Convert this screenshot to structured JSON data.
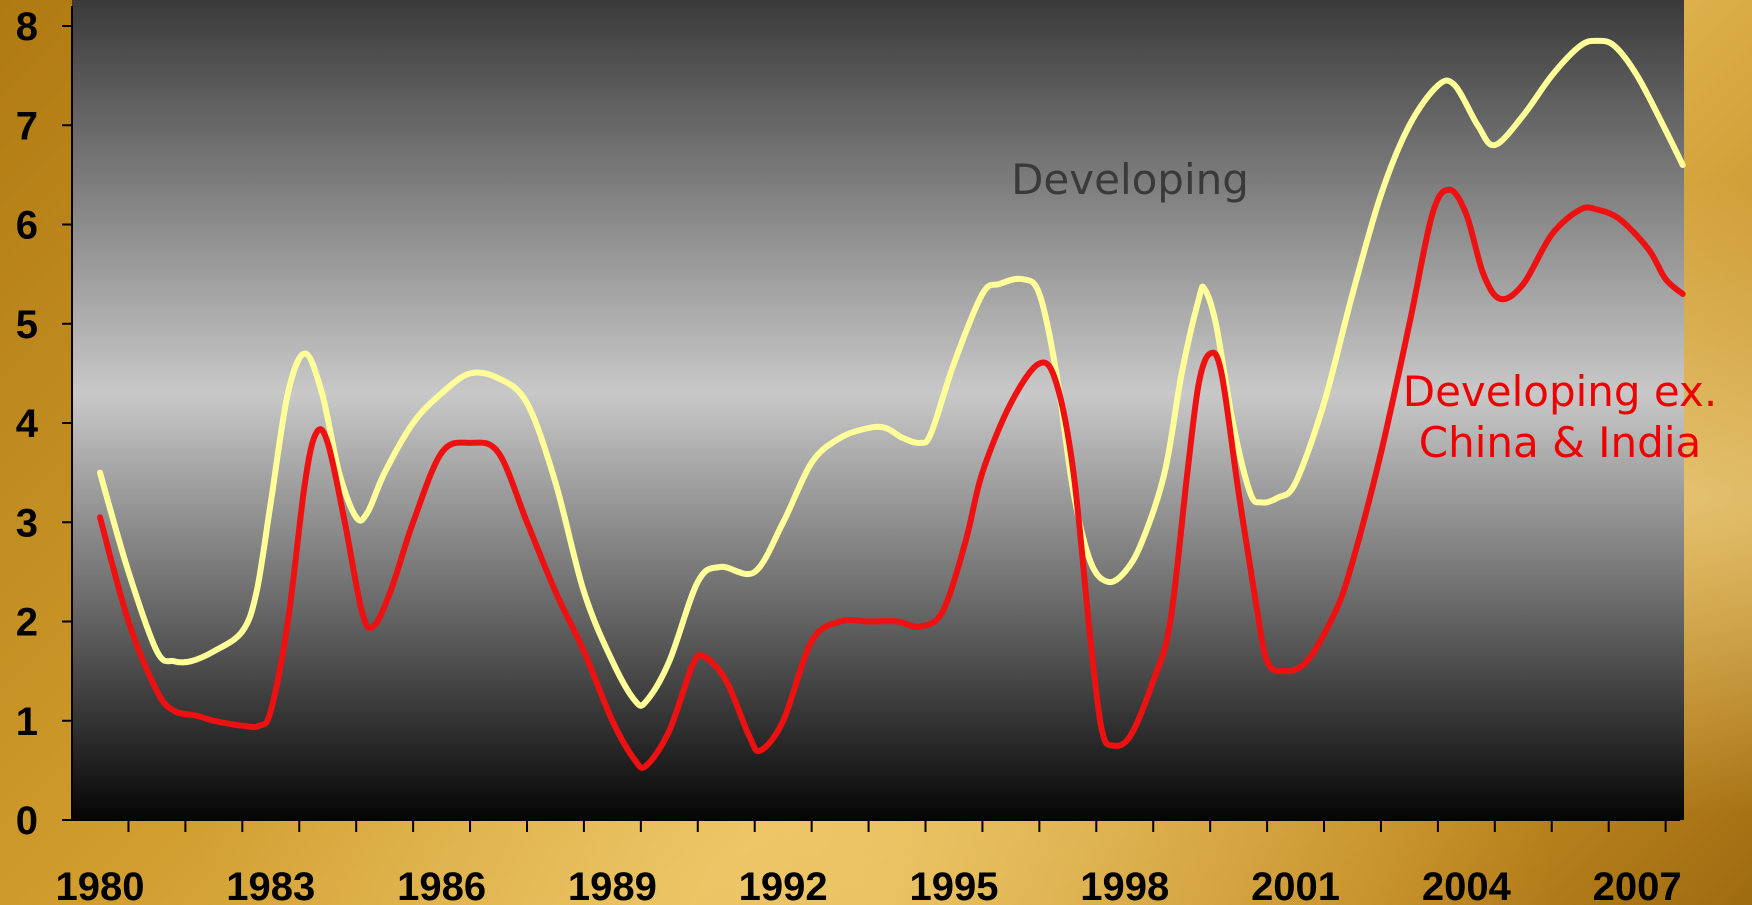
{
  "chart_data": {
    "type": "line",
    "title": "",
    "xlabel": "",
    "ylabel": "",
    "xlim": [
      1980,
      2008
    ],
    "ylim": [
      0,
      8
    ],
    "y_ticks": [
      "0",
      "1",
      "2",
      "3",
      "4",
      "5",
      "6",
      "7",
      "8"
    ],
    "x_ticks": [
      "1980",
      "1983",
      "1986",
      "1989",
      "1992",
      "1995",
      "1998",
      "2001",
      "2004",
      "2007"
    ],
    "grid": false,
    "legend": "none",
    "annotations": [
      {
        "text": "Developing",
        "series": "Developing"
      },
      {
        "text_lines": [
          "Developing ex.",
          "China & India"
        ],
        "series": "Developing ex. China & India"
      }
    ],
    "series": [
      {
        "name": "Developing",
        "color": "#ffff99",
        "points": [
          [
            1980.0,
            3.5
          ],
          [
            1980.5,
            2.5
          ],
          [
            1981.0,
            1.7
          ],
          [
            1981.3,
            1.6
          ],
          [
            1981.6,
            1.6
          ],
          [
            1982.0,
            1.7
          ],
          [
            1982.5,
            1.9
          ],
          [
            1982.75,
            2.3
          ],
          [
            1983.0,
            3.2
          ],
          [
            1983.3,
            4.3
          ],
          [
            1983.6,
            4.7
          ],
          [
            1983.9,
            4.3
          ],
          [
            1984.2,
            3.5
          ],
          [
            1984.5,
            3.05
          ],
          [
            1984.7,
            3.1
          ],
          [
            1985.0,
            3.5
          ],
          [
            1985.5,
            4.0
          ],
          [
            1986.0,
            4.3
          ],
          [
            1986.5,
            4.5
          ],
          [
            1987.0,
            4.45
          ],
          [
            1987.5,
            4.2
          ],
          [
            1988.0,
            3.4
          ],
          [
            1988.5,
            2.3
          ],
          [
            1989.0,
            1.6
          ],
          [
            1989.4,
            1.2
          ],
          [
            1989.6,
            1.2
          ],
          [
            1990.0,
            1.6
          ],
          [
            1990.5,
            2.4
          ],
          [
            1990.9,
            2.55
          ],
          [
            1991.5,
            2.5
          ],
          [
            1992.0,
            3.0
          ],
          [
            1992.5,
            3.6
          ],
          [
            1993.0,
            3.85
          ],
          [
            1993.5,
            3.95
          ],
          [
            1993.8,
            3.95
          ],
          [
            1994.1,
            3.85
          ],
          [
            1994.4,
            3.8
          ],
          [
            1994.6,
            3.9
          ],
          [
            1995.0,
            4.6
          ],
          [
            1995.5,
            5.3
          ],
          [
            1995.8,
            5.4
          ],
          [
            1996.2,
            5.45
          ],
          [
            1996.5,
            5.3
          ],
          [
            1996.8,
            4.5
          ],
          [
            1997.1,
            3.3
          ],
          [
            1997.4,
            2.6
          ],
          [
            1997.7,
            2.4
          ],
          [
            1998.0,
            2.5
          ],
          [
            1998.3,
            2.8
          ],
          [
            1998.7,
            3.5
          ],
          [
            1999.0,
            4.5
          ],
          [
            1999.3,
            5.25
          ],
          [
            1999.4,
            5.35
          ],
          [
            1999.6,
            5.0
          ],
          [
            1999.9,
            4.0
          ],
          [
            2000.2,
            3.3
          ],
          [
            2000.4,
            3.2
          ],
          [
            2000.7,
            3.25
          ],
          [
            2001.0,
            3.4
          ],
          [
            2001.5,
            4.2
          ],
          [
            2002.0,
            5.3
          ],
          [
            2002.5,
            6.3
          ],
          [
            2003.0,
            7.0
          ],
          [
            2003.5,
            7.4
          ],
          [
            2003.8,
            7.4
          ],
          [
            2004.2,
            7.0
          ],
          [
            2004.5,
            6.8
          ],
          [
            2005.0,
            7.1
          ],
          [
            2005.5,
            7.5
          ],
          [
            2006.0,
            7.8
          ],
          [
            2006.3,
            7.85
          ],
          [
            2006.6,
            7.8
          ],
          [
            2007.0,
            7.5
          ],
          [
            2007.5,
            6.95
          ],
          [
            2007.8,
            6.6
          ]
        ]
      },
      {
        "name": "Developing ex. China & India",
        "color": "#ee1111",
        "points": [
          [
            1980.0,
            3.05
          ],
          [
            1980.5,
            2.0
          ],
          [
            1981.0,
            1.3
          ],
          [
            1981.3,
            1.1
          ],
          [
            1981.7,
            1.05
          ],
          [
            1982.0,
            1.0
          ],
          [
            1982.5,
            0.95
          ],
          [
            1982.8,
            0.95
          ],
          [
            1983.0,
            1.1
          ],
          [
            1983.3,
            2.0
          ],
          [
            1983.6,
            3.4
          ],
          [
            1983.8,
            3.9
          ],
          [
            1984.0,
            3.8
          ],
          [
            1984.3,
            3.0
          ],
          [
            1984.6,
            2.1
          ],
          [
            1984.8,
            1.95
          ],
          [
            1985.1,
            2.3
          ],
          [
            1985.5,
            3.0
          ],
          [
            1986.0,
            3.7
          ],
          [
            1986.5,
            3.8
          ],
          [
            1987.0,
            3.7
          ],
          [
            1987.5,
            3.0
          ],
          [
            1988.0,
            2.3
          ],
          [
            1988.5,
            1.7
          ],
          [
            1989.0,
            1.0
          ],
          [
            1989.4,
            0.6
          ],
          [
            1989.6,
            0.55
          ],
          [
            1990.0,
            0.9
          ],
          [
            1990.4,
            1.55
          ],
          [
            1990.6,
            1.65
          ],
          [
            1991.0,
            1.4
          ],
          [
            1991.4,
            0.85
          ],
          [
            1991.6,
            0.7
          ],
          [
            1992.0,
            1.0
          ],
          [
            1992.5,
            1.8
          ],
          [
            1993.0,
            2.0
          ],
          [
            1993.5,
            2.0
          ],
          [
            1994.0,
            2.0
          ],
          [
            1994.4,
            1.95
          ],
          [
            1994.8,
            2.1
          ],
          [
            1995.2,
            2.8
          ],
          [
            1995.5,
            3.5
          ],
          [
            1996.0,
            4.2
          ],
          [
            1996.5,
            4.6
          ],
          [
            1996.8,
            4.4
          ],
          [
            1997.1,
            3.5
          ],
          [
            1997.4,
            1.8
          ],
          [
            1997.6,
            0.9
          ],
          [
            1997.8,
            0.75
          ],
          [
            1998.1,
            0.85
          ],
          [
            1998.5,
            1.4
          ],
          [
            1998.8,
            2.0
          ],
          [
            1999.1,
            3.5
          ],
          [
            1999.3,
            4.4
          ],
          [
            1999.5,
            4.7
          ],
          [
            1999.7,
            4.5
          ],
          [
            2000.0,
            3.3
          ],
          [
            2000.3,
            2.2
          ],
          [
            2000.5,
            1.6
          ],
          [
            2000.8,
            1.5
          ],
          [
            2001.2,
            1.6
          ],
          [
            2001.7,
            2.1
          ],
          [
            2002.0,
            2.6
          ],
          [
            2002.5,
            3.7
          ],
          [
            2003.0,
            5.0
          ],
          [
            2003.4,
            6.1
          ],
          [
            2003.7,
            6.35
          ],
          [
            2004.0,
            6.1
          ],
          [
            2004.3,
            5.5
          ],
          [
            2004.6,
            5.25
          ],
          [
            2005.0,
            5.4
          ],
          [
            2005.5,
            5.9
          ],
          [
            2006.0,
            6.15
          ],
          [
            2006.3,
            6.15
          ],
          [
            2006.7,
            6.05
          ],
          [
            2007.2,
            5.75
          ],
          [
            2007.5,
            5.45
          ],
          [
            2007.8,
            5.3
          ]
        ]
      }
    ]
  }
}
